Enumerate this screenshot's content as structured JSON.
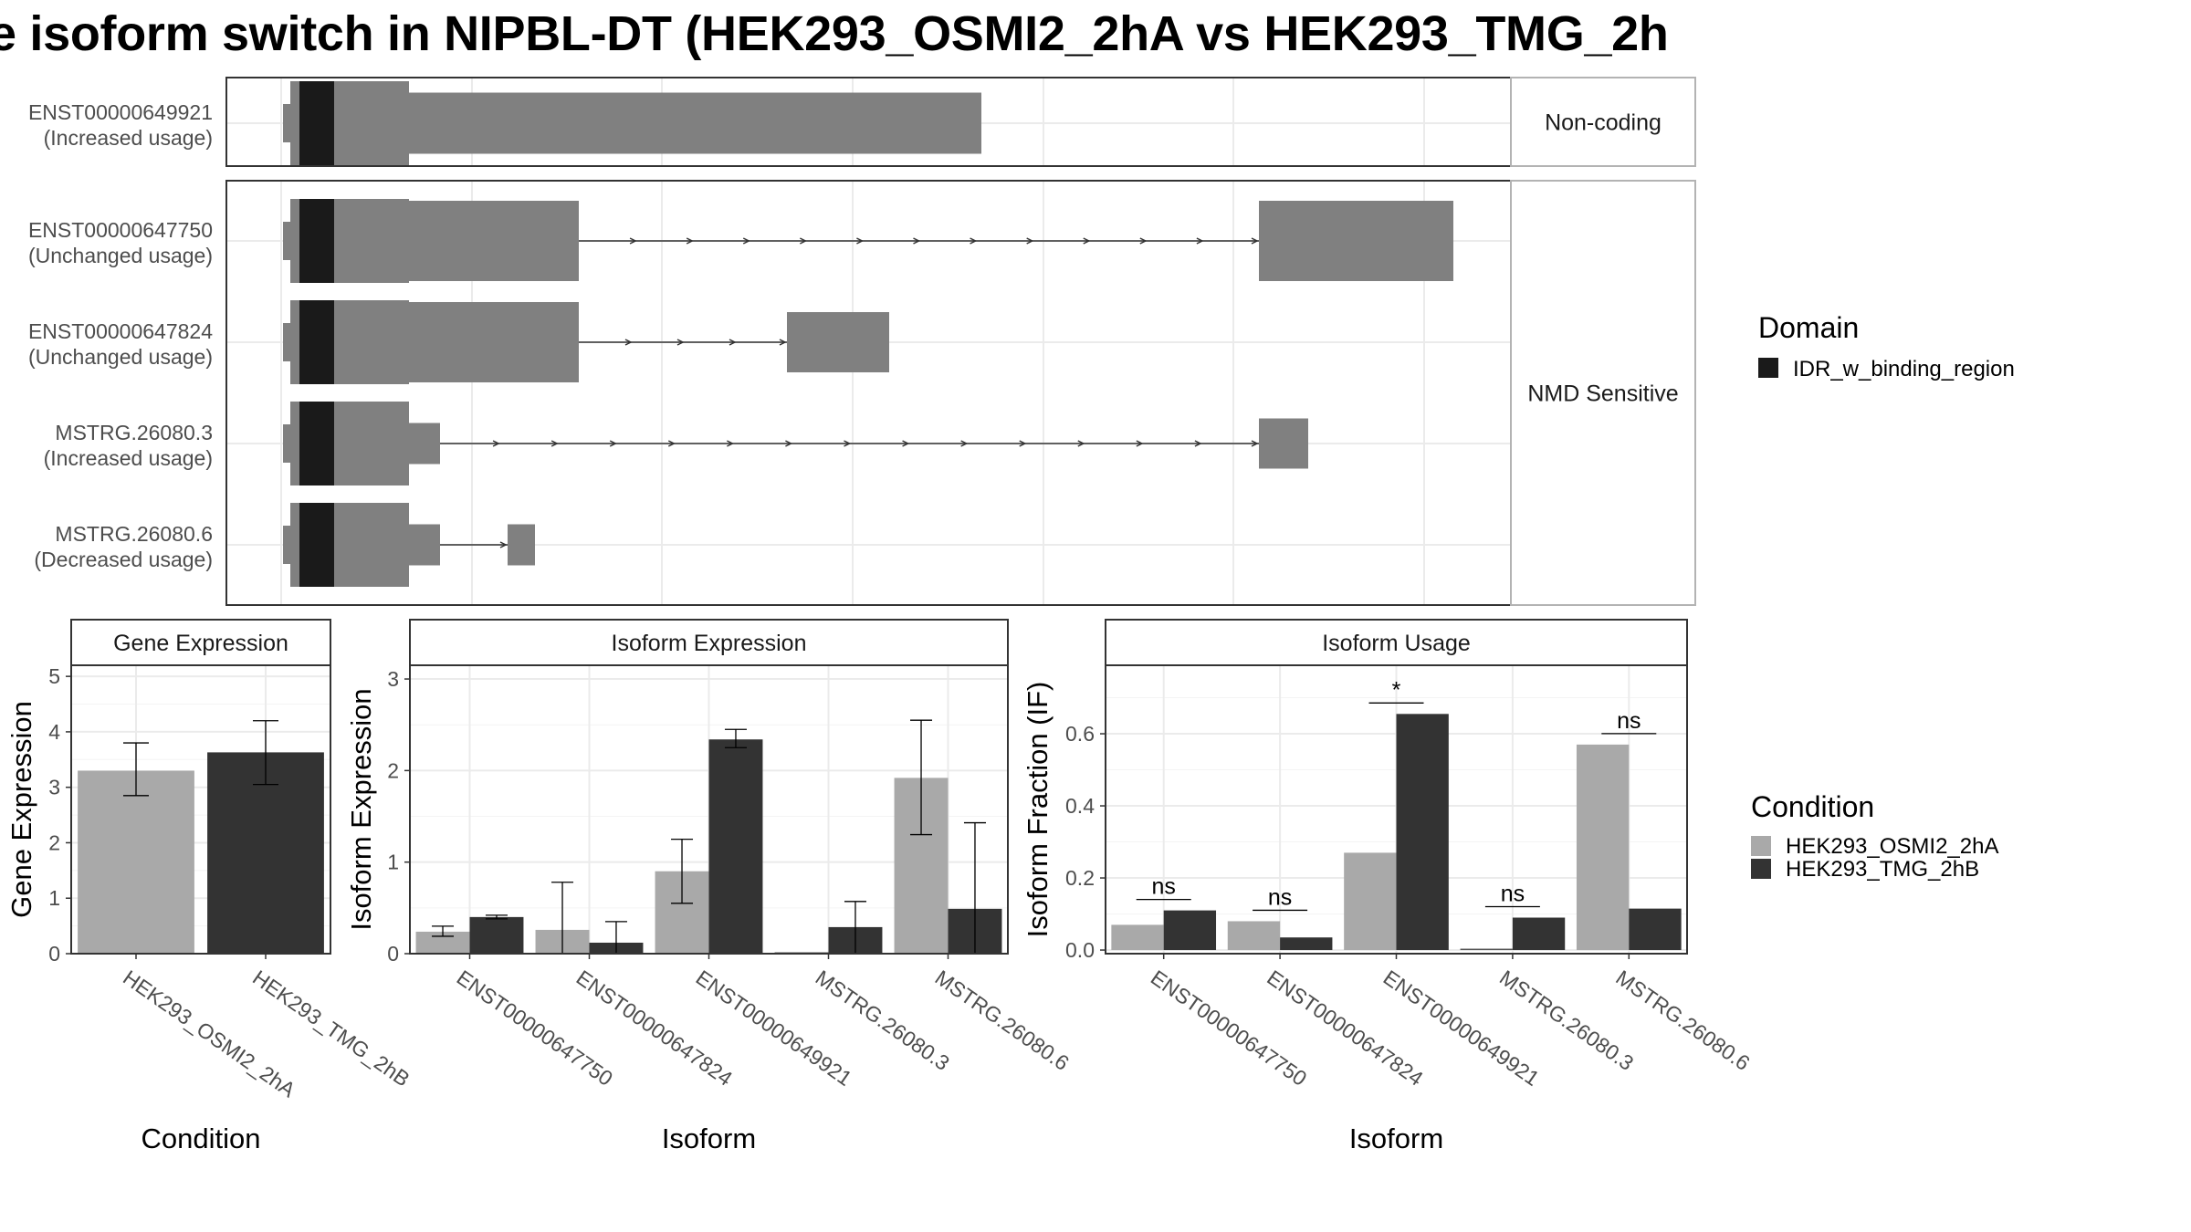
{
  "title": "e isoform switch in NIPBL-DT (HEK293_OSMI2_2hA vs HEK293_TMG_2h",
  "colors": {
    "exon": "#808080",
    "domain": "#1a1a1a",
    "cond_a": "#a9a9a9",
    "cond_b": "#333333",
    "grid": "#ebebeb",
    "strip_bg": "#ffffff"
  },
  "structure": {
    "groups": [
      {
        "label": "Non-coding",
        "isoforms": [
          {
            "id": "ENST00000649921",
            "usage": "(Increased usage)"
          }
        ]
      },
      {
        "label": "NMD Sensitive",
        "isoforms": [
          {
            "id": "ENST00000647750",
            "usage": "(Unchanged usage)"
          },
          {
            "id": "ENST00000647824",
            "usage": "(Unchanged usage)"
          },
          {
            "id": "MSTRG.26080.3",
            "usage": "(Increased usage)"
          },
          {
            "id": "MSTRG.26080.6",
            "usage": "(Decreased usage)"
          }
        ]
      }
    ],
    "domain_legend": {
      "title": "Domain",
      "items": [
        {
          "label": "IDR_w_binding_region",
          "color": "#1a1a1a"
        }
      ]
    }
  },
  "chart_data": [
    {
      "type": "bar",
      "title": "Gene Expression",
      "xlabel": "Condition",
      "ylabel": "Gene Expression",
      "ylim": [
        0,
        5.2
      ],
      "yticks": [
        "0",
        "1",
        "2",
        "3",
        "4",
        "5"
      ],
      "categories": [
        "HEK293_OSMI2_2hA",
        "HEK293_TMG_2hB"
      ],
      "values": [
        3.3,
        3.63
      ],
      "error_low": [
        2.85,
        3.05
      ],
      "error_high": [
        3.8,
        4.2
      ]
    },
    {
      "type": "bar",
      "title": "Isoform Expression",
      "xlabel": "Isoform",
      "ylabel": "Isoform Expression",
      "ylim": [
        0,
        3.15
      ],
      "yticks": [
        "0",
        "1",
        "2",
        "3"
      ],
      "categories": [
        "ENST00000647750",
        "ENST00000647824",
        "ENST00000649921",
        "MSTRG.26080.3",
        "MSTRG.26080.6"
      ],
      "series": [
        {
          "name": "HEK293_OSMI2_2hA",
          "values": [
            0.24,
            0.26,
            0.9,
            0.0,
            1.92
          ],
          "error_low": [
            0.19,
            0.0,
            0.55,
            0.0,
            1.3
          ],
          "error_high": [
            0.3,
            0.78,
            1.25,
            0.0,
            2.55
          ]
        },
        {
          "name": "HEK293_TMG_2hB",
          "values": [
            0.4,
            0.12,
            2.34,
            0.29,
            0.49
          ],
          "error_low": [
            0.38,
            0.0,
            2.25,
            0.0,
            0.0
          ],
          "error_high": [
            0.42,
            0.35,
            2.45,
            0.57,
            1.43
          ]
        }
      ]
    },
    {
      "type": "bar",
      "title": "Isoform Usage",
      "xlabel": "Isoform",
      "ylabel": "Isoform Fraction (IF)",
      "ylim": [
        -0.01,
        0.79
      ],
      "yticks": [
        "0.0",
        "0.2",
        "0.4",
        "0.6"
      ],
      "categories": [
        "ENST00000647750",
        "ENST00000647824",
        "ENST00000649921",
        "MSTRG.26080.3",
        "MSTRG.26080.6"
      ],
      "series": [
        {
          "name": "HEK293_OSMI2_2hA",
          "values": [
            0.07,
            0.08,
            0.27,
            0.0,
            0.57
          ]
        },
        {
          "name": "HEK293_TMG_2hB",
          "values": [
            0.11,
            0.035,
            0.655,
            0.09,
            0.115
          ]
        }
      ],
      "significance": [
        "ns",
        "ns",
        "*",
        "ns",
        "ns"
      ]
    }
  ],
  "condition_legend": {
    "title": "Condition",
    "items": [
      {
        "label": "HEK293_OSMI2_2hA",
        "color": "#a9a9a9"
      },
      {
        "label": "HEK293_TMG_2hB",
        "color": "#333333"
      }
    ]
  }
}
